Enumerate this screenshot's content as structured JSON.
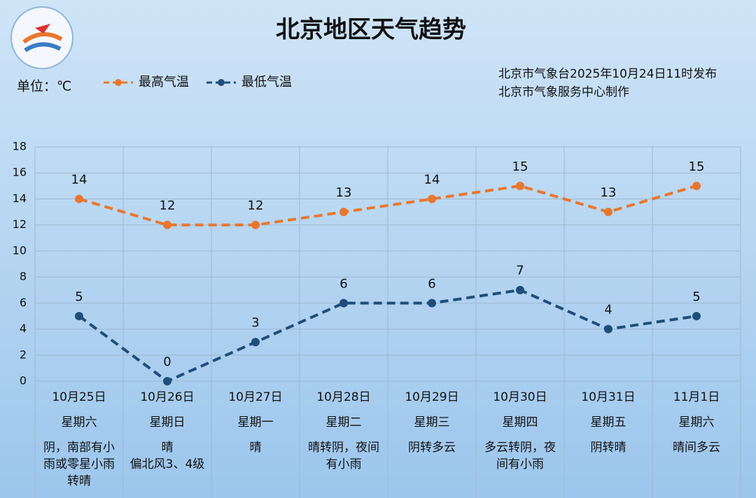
{
  "header": {
    "title": "北京地区天气趋势",
    "unit": "单位：℃",
    "source": [
      "北京市气象台2025年10月24日11时发布",
      "北京市气象服务中心制作"
    ]
  },
  "chart_data": {
    "type": "line",
    "categories": [
      "10月25日",
      "10月26日",
      "10月27日",
      "10月28日",
      "10月29日",
      "10月30日",
      "10月31日",
      "11月1日"
    ],
    "weekdays": [
      "星期六",
      "星期日",
      "星期一",
      "星期二",
      "星期三",
      "星期四",
      "星期五",
      "星期六"
    ],
    "forecast": [
      [
        "阴，南部有小雨或零星小雨转晴"
      ],
      [
        "晴",
        "偏北风3、4级"
      ],
      [
        "晴"
      ],
      [
        "晴转阴，夜间有小雨"
      ],
      [
        "阴转多云"
      ],
      [
        "多云转阴，夜间有小雨"
      ],
      [
        "阴转晴"
      ],
      [
        "晴间多云"
      ]
    ],
    "series": [
      {
        "name": "最高气温",
        "color": "#e8772e",
        "values": [
          14,
          12,
          12,
          13,
          14,
          15,
          13,
          15
        ]
      },
      {
        "name": "最低气温",
        "color": "#1f4e79",
        "values": [
          5,
          0,
          3,
          6,
          6,
          7,
          4,
          5
        ]
      }
    ],
    "ylim": [
      0,
      18
    ],
    "yticks": [
      0,
      2,
      4,
      6,
      8,
      10,
      12,
      14,
      16,
      18
    ],
    "grid": true
  }
}
